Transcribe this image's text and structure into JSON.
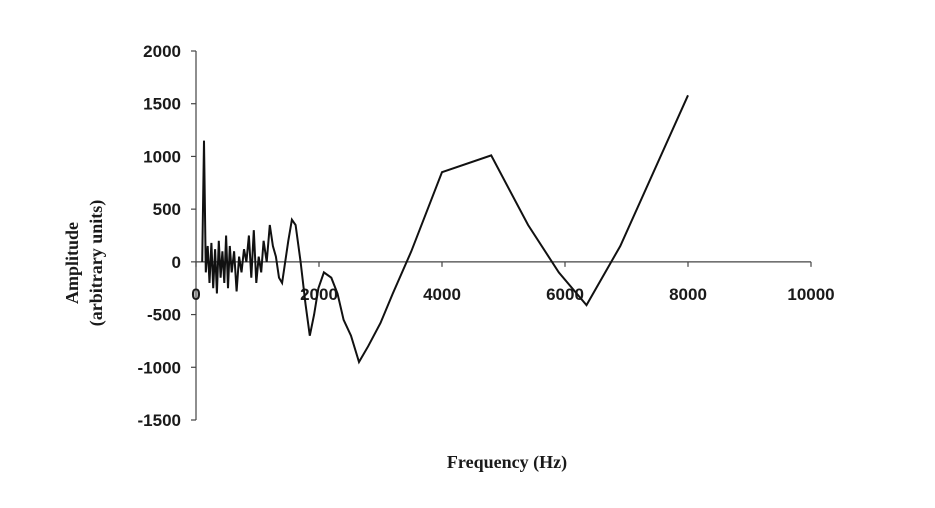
{
  "chart_data": {
    "type": "line",
    "title": "",
    "xlabel": "Frequency (Hz)",
    "ylabel_line1": "Amplitude",
    "ylabel_line2": "(arbitrary units)",
    "xlim": [
      0,
      10000
    ],
    "ylim": [
      -1500,
      2000
    ],
    "x_ticks": [
      0,
      2000,
      4000,
      6000,
      8000,
      10000
    ],
    "y_ticks": [
      2000,
      1500,
      1000,
      500,
      0,
      -500,
      -1000,
      -1500
    ],
    "grid": false,
    "legend": "none",
    "series": [
      {
        "color": "#111111",
        "points": [
          [
            100,
            0
          ],
          [
            130,
            1150
          ],
          [
            160,
            -100
          ],
          [
            190,
            150
          ],
          [
            220,
            -200
          ],
          [
            250,
            180
          ],
          [
            280,
            -250
          ],
          [
            310,
            120
          ],
          [
            340,
            -300
          ],
          [
            370,
            200
          ],
          [
            400,
            -150
          ],
          [
            430,
            100
          ],
          [
            460,
            -200
          ],
          [
            490,
            250
          ],
          [
            520,
            -250
          ],
          [
            550,
            150
          ],
          [
            580,
            -100
          ],
          [
            620,
            100
          ],
          [
            660,
            -280
          ],
          [
            700,
            50
          ],
          [
            740,
            -100
          ],
          [
            780,
            120
          ],
          [
            820,
            0
          ],
          [
            860,
            250
          ],
          [
            900,
            -150
          ],
          [
            940,
            300
          ],
          [
            980,
            -200
          ],
          [
            1020,
            50
          ],
          [
            1060,
            -100
          ],
          [
            1100,
            200
          ],
          [
            1150,
            0
          ],
          [
            1200,
            350
          ],
          [
            1250,
            150
          ],
          [
            1300,
            50
          ],
          [
            1350,
            -150
          ],
          [
            1400,
            -200
          ],
          [
            1450,
            0
          ],
          [
            1500,
            200
          ],
          [
            1560,
            400
          ],
          [
            1620,
            350
          ],
          [
            1700,
            0
          ],
          [
            1780,
            -400
          ],
          [
            1850,
            -700
          ],
          [
            1920,
            -500
          ],
          [
            1990,
            -250
          ],
          [
            2080,
            -100
          ],
          [
            2200,
            -150
          ],
          [
            2300,
            -300
          ],
          [
            2400,
            -550
          ],
          [
            2520,
            -700
          ],
          [
            2650,
            -950
          ],
          [
            2800,
            -800
          ],
          [
            3000,
            -580
          ],
          [
            3200,
            -300
          ],
          [
            3500,
            100
          ],
          [
            4000,
            850
          ],
          [
            4800,
            1010
          ],
          [
            5400,
            350
          ],
          [
            5900,
            -100
          ],
          [
            6350,
            -410
          ],
          [
            6900,
            150
          ],
          [
            8000,
            1580
          ]
        ]
      }
    ]
  }
}
